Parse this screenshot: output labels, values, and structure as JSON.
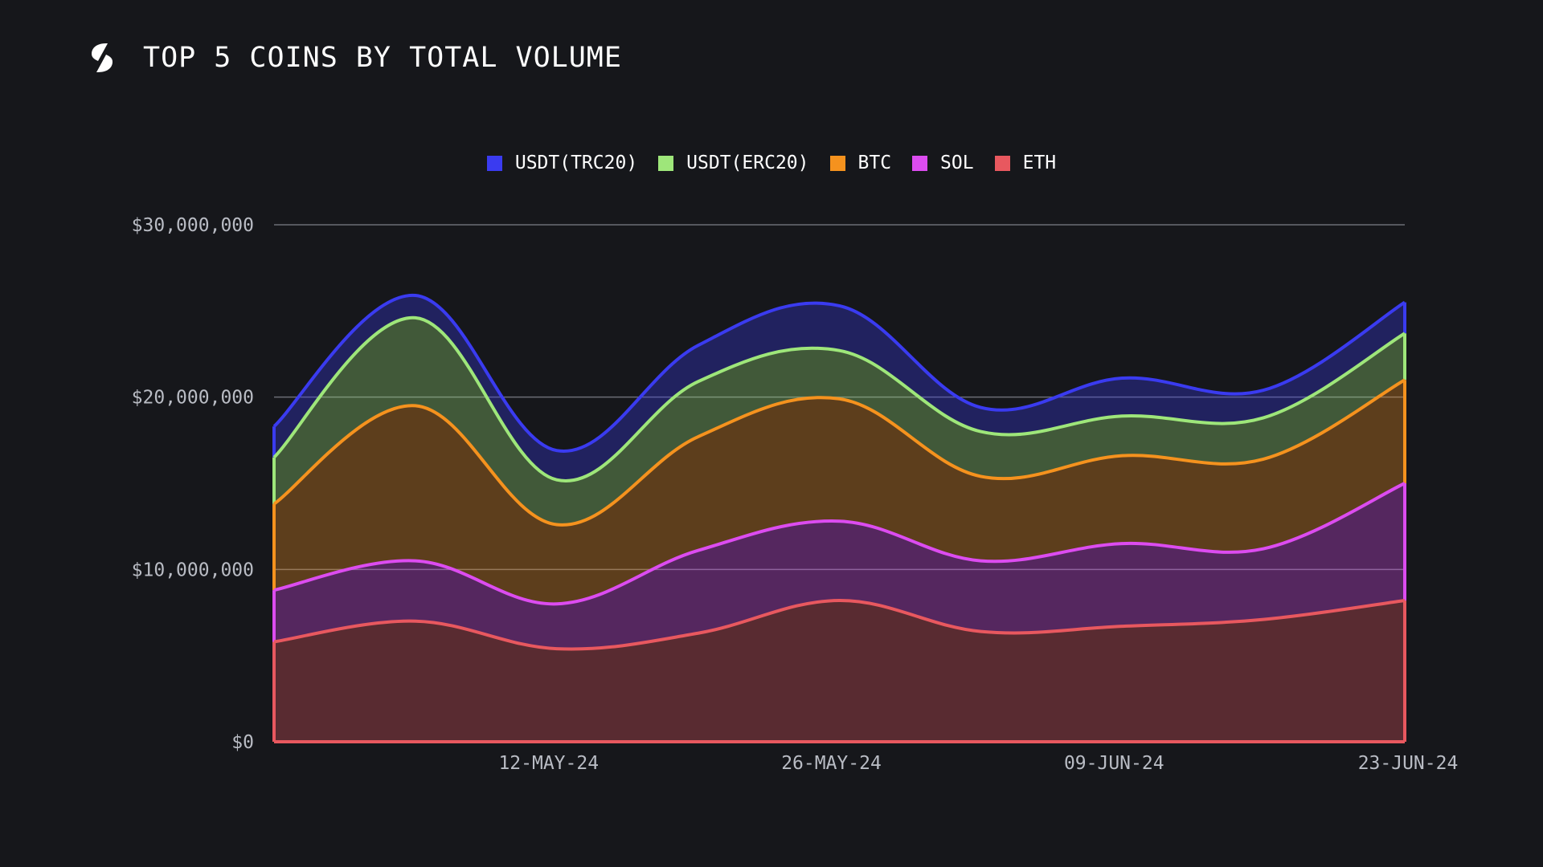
{
  "header": {
    "title": "TOP 5 COINS BY TOTAL VOLUME",
    "logo_icon": "logo-icon"
  },
  "colors": {
    "background": "#16171b",
    "USDT(TRC20)": "#3a3bf0",
    "USDT(ERC20)": "#9ee67a",
    "BTC": "#f5921e",
    "SOL": "#dc4cf0",
    "ETH": "#e8585f"
  },
  "chart_data": {
    "type": "area",
    "stacked": true,
    "title": "TOP 5 COINS BY TOTAL VOLUME",
    "x": [
      "28-APR-24",
      "05-MAY-24",
      "12-MAY-24",
      "19-MAY-24",
      "26-MAY-24",
      "02-JUN-24",
      "09-JUN-24",
      "16-JUN-24",
      "23-JUN-24"
    ],
    "x_tick_labels": [
      "12-MAY-24",
      "26-MAY-24",
      "09-JUN-24",
      "23-JUN-24"
    ],
    "y_tick_labels": [
      "$0",
      "$10,000,000",
      "$20,000,000",
      "$30,000,000"
    ],
    "ylim": [
      0,
      30000000
    ],
    "grid": true,
    "legend_position": "top-center",
    "series": [
      {
        "name": "ETH",
        "values": [
          5800000,
          7000000,
          5400000,
          6300000,
          8200000,
          6400000,
          6700000,
          7100000,
          8200000
        ]
      },
      {
        "name": "SOL",
        "values": [
          3000000,
          3500000,
          2600000,
          4800000,
          4600000,
          4100000,
          4800000,
          4100000,
          6800000
        ]
      },
      {
        "name": "BTC",
        "values": [
          5000000,
          9000000,
          4600000,
          6600000,
          7100000,
          4900000,
          5100000,
          5200000,
          6000000
        ]
      },
      {
        "name": "USDT(ERC20)",
        "values": [
          2700000,
          5100000,
          2600000,
          3200000,
          2800000,
          2600000,
          2300000,
          2400000,
          2700000
        ]
      },
      {
        "name": "USDT(TRC20)",
        "values": [
          1800000,
          1300000,
          1700000,
          2100000,
          2600000,
          1400000,
          2200000,
          1600000,
          1800000
        ]
      }
    ]
  }
}
